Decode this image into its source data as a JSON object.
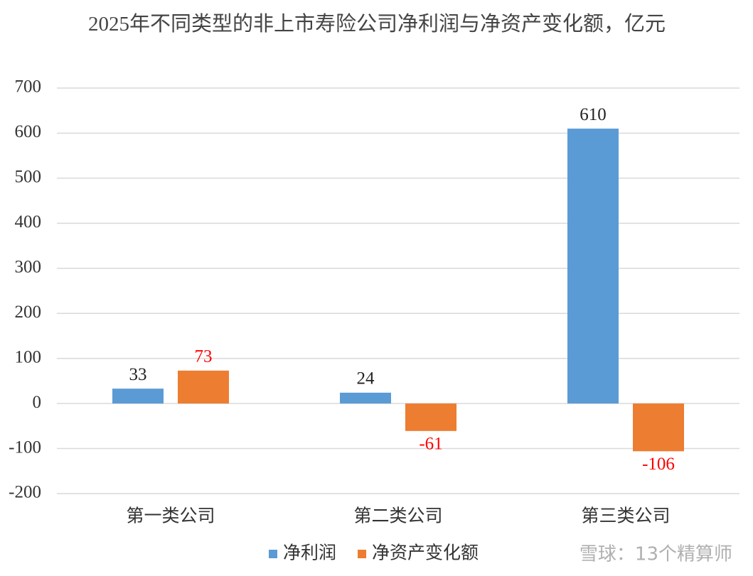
{
  "chart_data": {
    "type": "bar",
    "title": "2025年不同类型的非上市寿险公司净利润与净资产变化额，亿元",
    "categories": [
      "第一类公司",
      "第二类公司",
      "第三类公司"
    ],
    "series": [
      {
        "name": "净利润",
        "color": "#5b9bd5",
        "label_color": "#222222",
        "values": [
          33,
          24,
          610
        ]
      },
      {
        "name": "净资产变化额",
        "color": "#ed7d31",
        "label_color": "#ff0000",
        "values": [
          73,
          -61,
          -106
        ]
      }
    ],
    "ylim": [
      -200,
      700
    ],
    "yticks": [
      -200,
      -100,
      0,
      100,
      200,
      300,
      400,
      500,
      600,
      700
    ],
    "grid": true,
    "legend": "bottom",
    "watermark": "雪球：13个精算师"
  }
}
